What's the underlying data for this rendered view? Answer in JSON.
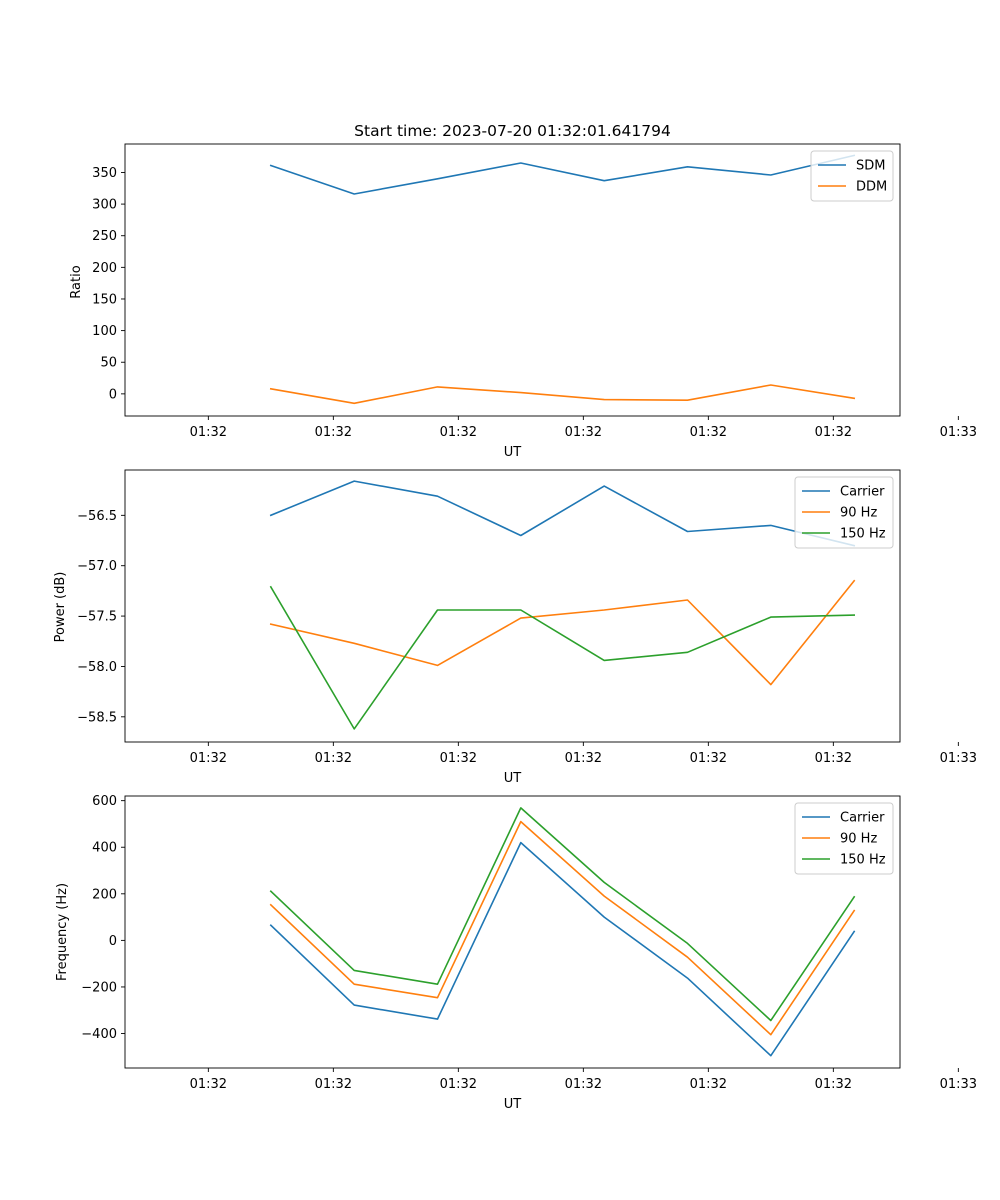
{
  "colors": {
    "blue": "#1f77b4",
    "orange": "#ff7f0e",
    "green": "#2ca02c"
  },
  "chart_data": [
    {
      "type": "line",
      "title": "Start time: 2023-07-20 01:32:01.641794",
      "xlabel": "UT",
      "ylabel": "Ratio",
      "xlim": [
        -1,
        8.3
      ],
      "ylim": [
        -35,
        395
      ],
      "x": [
        0.75,
        1.75,
        2.75,
        3.75,
        4.75,
        5.75,
        6.75,
        7.75
      ],
      "xticks": [
        {
          "v": 0,
          "label": "01:32"
        },
        {
          "v": 1.5,
          "label": "01:32"
        },
        {
          "v": 3,
          "label": "01:32"
        },
        {
          "v": 4.5,
          "label": "01:32"
        },
        {
          "v": 6,
          "label": "01:32"
        },
        {
          "v": 7.5,
          "label": "01:32"
        },
        {
          "v": 9,
          "label": "01:33"
        }
      ],
      "yticks": [
        {
          "v": 0,
          "label": "0"
        },
        {
          "v": 50,
          "label": "50"
        },
        {
          "v": 100,
          "label": "100"
        },
        {
          "v": 150,
          "label": "150"
        },
        {
          "v": 200,
          "label": "200"
        },
        {
          "v": 250,
          "label": "250"
        },
        {
          "v": 300,
          "label": "300"
        },
        {
          "v": 350,
          "label": "350"
        }
      ],
      "legend": "top-right",
      "series": [
        {
          "name": "SDM",
          "color": "#1f77b4",
          "values": [
            361,
            316,
            340,
            365,
            337,
            359,
            346,
            377
          ]
        },
        {
          "name": "DDM",
          "color": "#ff7f0e",
          "values": [
            8,
            -15,
            11,
            2,
            -9,
            -10,
            14,
            -7
          ]
        }
      ]
    },
    {
      "type": "line",
      "title": "",
      "xlabel": "UT",
      "ylabel": "Power (dB)",
      "xlim": [
        -1,
        8.3
      ],
      "ylim": [
        -58.75,
        -56.05
      ],
      "x": [
        0.75,
        1.75,
        2.75,
        3.75,
        4.75,
        5.75,
        6.75,
        7.75
      ],
      "xticks": [
        {
          "v": 0,
          "label": "01:32"
        },
        {
          "v": 1.5,
          "label": "01:32"
        },
        {
          "v": 3,
          "label": "01:32"
        },
        {
          "v": 4.5,
          "label": "01:32"
        },
        {
          "v": 6,
          "label": "01:32"
        },
        {
          "v": 7.5,
          "label": "01:32"
        },
        {
          "v": 9,
          "label": "01:33"
        }
      ],
      "yticks": [
        {
          "v": -56.5,
          "label": "−56.5"
        },
        {
          "v": -57.0,
          "label": "−57.0"
        },
        {
          "v": -57.5,
          "label": "−57.5"
        },
        {
          "v": -58.0,
          "label": "−58.0"
        },
        {
          "v": -58.5,
          "label": "−58.5"
        }
      ],
      "legend": "top-right",
      "series": [
        {
          "name": "Carrier",
          "color": "#1f77b4",
          "values": [
            -56.5,
            -56.16,
            -56.31,
            -56.7,
            -56.21,
            -56.66,
            -56.6,
            -56.8
          ]
        },
        {
          "name": "90 Hz",
          "color": "#ff7f0e",
          "values": [
            -57.58,
            -57.77,
            -57.99,
            -57.52,
            -57.44,
            -57.34,
            -58.18,
            -57.15
          ]
        },
        {
          "name": "150 Hz",
          "color": "#2ca02c",
          "values": [
            -57.21,
            -58.62,
            -57.44,
            -57.44,
            -57.94,
            -57.86,
            -57.51,
            -57.49
          ]
        }
      ]
    },
    {
      "type": "line",
      "title": "",
      "xlabel": "UT",
      "ylabel": "Frequency (Hz)",
      "xlim": [
        -1,
        8.3
      ],
      "ylim": [
        -548,
        620
      ],
      "x": [
        0.75,
        1.75,
        2.75,
        3.75,
        4.75,
        5.75,
        6.75,
        7.75
      ],
      "xticks": [
        {
          "v": 0,
          "label": "01:32"
        },
        {
          "v": 1.5,
          "label": "01:32"
        },
        {
          "v": 3,
          "label": "01:32"
        },
        {
          "v": 4.5,
          "label": "01:32"
        },
        {
          "v": 6,
          "label": "01:32"
        },
        {
          "v": 7.5,
          "label": "01:32"
        },
        {
          "v": 9,
          "label": "01:33"
        }
      ],
      "yticks": [
        {
          "v": -400,
          "label": "−400"
        },
        {
          "v": -200,
          "label": "−200"
        },
        {
          "v": 0,
          "label": "0"
        },
        {
          "v": 200,
          "label": "200"
        },
        {
          "v": 400,
          "label": "400"
        },
        {
          "v": 600,
          "label": "600"
        }
      ],
      "legend": "top-right",
      "series": [
        {
          "name": "Carrier",
          "color": "#1f77b4",
          "values": [
            65,
            -278,
            -338,
            420,
            100,
            -162,
            -495,
            38
          ]
        },
        {
          "name": "90 Hz",
          "color": "#ff7f0e",
          "values": [
            153,
            -188,
            -246,
            510,
            190,
            -72,
            -405,
            128
          ]
        },
        {
          "name": "150 Hz",
          "color": "#2ca02c",
          "values": [
            211,
            -129,
            -188,
            569,
            249,
            -13,
            -344,
            187
          ]
        }
      ]
    }
  ]
}
